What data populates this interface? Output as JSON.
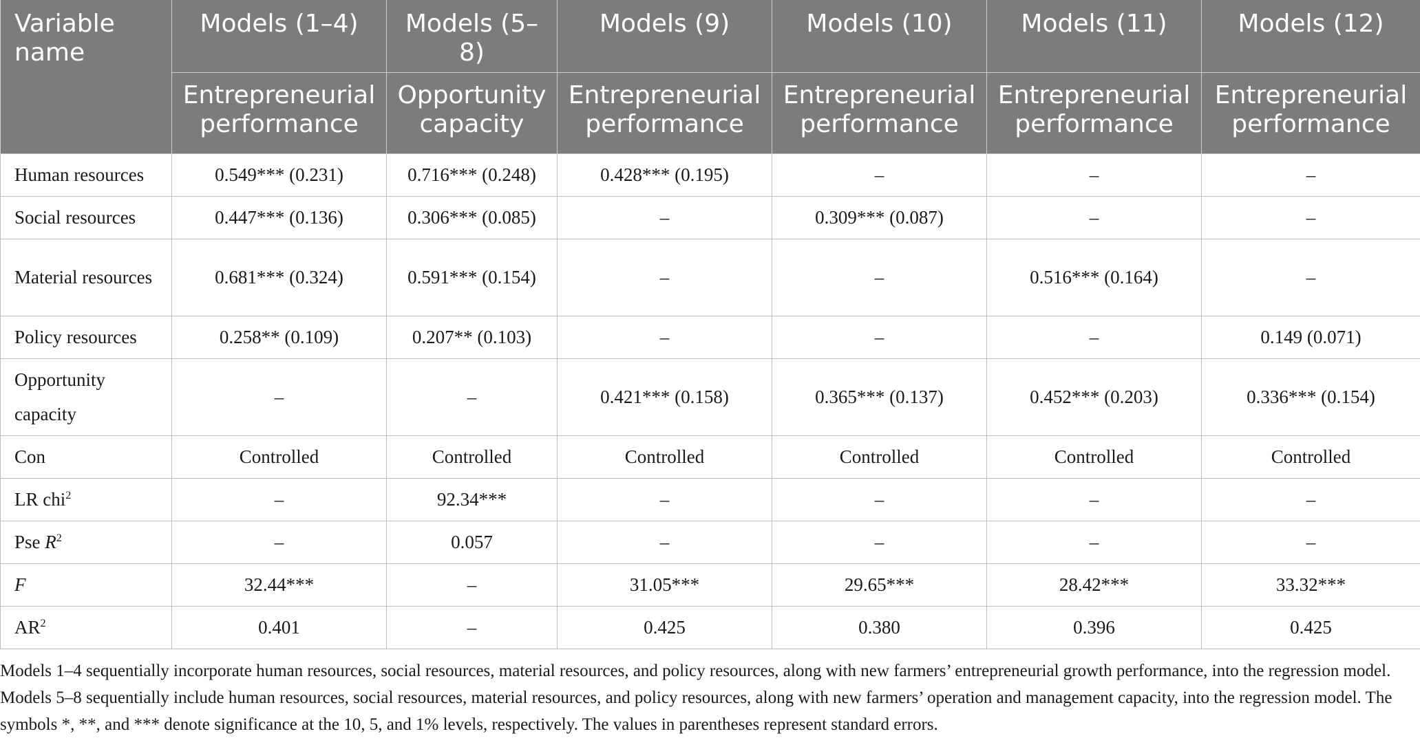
{
  "table": {
    "header_row1": [
      "Variable name",
      "Models (1–4)",
      "Models (5–8)",
      "Models (9)",
      "Models (10)",
      "Models (11)",
      "Models (12)"
    ],
    "header_row2": [
      "Entrepreneurial performance",
      "Opportunity capacity",
      "Entrepreneurial performance",
      "Entrepreneurial performance",
      "Entrepreneurial performance",
      "Entrepreneurial performance"
    ],
    "rows": [
      {
        "label": "Human resources",
        "cells": [
          "0.549*** (0.231)",
          "0.716*** (0.248)",
          "0.428*** (0.195)",
          "–",
          "–",
          "–"
        ]
      },
      {
        "label": "Social resources",
        "cells": [
          "0.447*** (0.136)",
          "0.306*** (0.085)",
          "–",
          "0.309*** (0.087)",
          "–",
          "–"
        ]
      },
      {
        "label": "Material resources",
        "cells": [
          "0.681*** (0.324)",
          "0.591*** (0.154)",
          "–",
          "–",
          "0.516*** (0.164)",
          "–"
        ]
      },
      {
        "label": "Policy resources",
        "cells": [
          "0.258** (0.109)",
          "0.207** (0.103)",
          "–",
          "–",
          "–",
          "0.149 (0.071)"
        ]
      },
      {
        "label": "Opportunity capacity",
        "cells": [
          "–",
          "–",
          "0.421*** (0.158)",
          "0.365*** (0.137)",
          "0.452*** (0.203)",
          "0.336*** (0.154)"
        ]
      },
      {
        "label": "Con",
        "cells": [
          "Controlled",
          "Controlled",
          "Controlled",
          "Controlled",
          "Controlled",
          "Controlled"
        ]
      },
      {
        "label_main": "LR chi",
        "label_sup": "2",
        "cells": [
          "–",
          "92.34***",
          "–",
          "–",
          "–",
          "–"
        ]
      },
      {
        "label_main": "Pse ",
        "label_italic": "R",
        "label_sup": "2",
        "cells": [
          "–",
          "0.057",
          "–",
          "–",
          "–",
          "–"
        ]
      },
      {
        "label_italic": "F",
        "cells": [
          "32.44***",
          "–",
          "31.05***",
          "29.65***",
          "28.42***",
          "33.32***"
        ]
      },
      {
        "label_main": "AR",
        "label_sup": "2",
        "cells": [
          "0.401",
          "–",
          "0.425",
          "0.380",
          "0.396",
          "0.425"
        ]
      }
    ]
  },
  "note": "Models 1–4 sequentially incorporate human resources, social resources, material resources, and policy resources, along with new farmers’ entrepreneurial growth performance, into the regression model. Models 5–8 sequentially include human resources, social resources, material resources, and policy resources, along with new farmers’ operation and management capacity, into the regression model. The symbols *, **, and *** denote significance at the 10, 5, and 1% levels, respectively. The values in parentheses represent standard errors.",
  "colors": {
    "header_bg": "#7b7d7b",
    "header_text": "#ffffff",
    "grid": "#bdbdbd"
  }
}
